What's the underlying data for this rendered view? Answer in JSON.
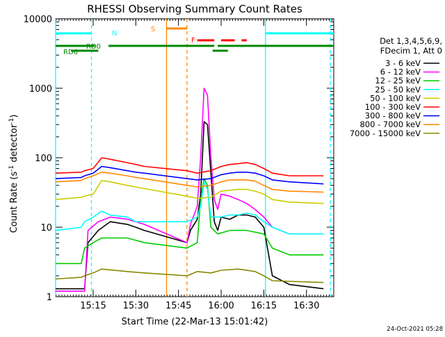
{
  "chart_data": {
    "type": "line",
    "title": "RHESSI Observing Summary Count Rates",
    "xlabel": "Start Time (22-Mar-13 15:01:42)",
    "ylabel_main": "Count Rate (s",
    "ylabel_sup1": "-1",
    "ylabel_mid": " detector",
    "ylabel_sup2": "-1",
    "ylabel_end": ")",
    "y_scale": "log",
    "ylim": [
      1,
      10000
    ],
    "xlim_minutes": [
      15.03,
      16.66
    ],
    "x_ticks": [
      {
        "label": "15:15",
        "x": 15.25
      },
      {
        "label": "15:30",
        "x": 15.5
      },
      {
        "label": "15:45",
        "x": 15.75
      },
      {
        "label": "16:00",
        "x": 16.0
      },
      {
        "label": "16:15",
        "x": 16.25
      },
      {
        "label": "16:30",
        "x": 16.5
      }
    ],
    "y_ticks": [
      {
        "label": "1",
        "v": 1
      },
      {
        "label": "10",
        "v": 10
      },
      {
        "label": "100",
        "v": 100
      },
      {
        "label": "1000",
        "v": 1000
      },
      {
        "label": "10000",
        "v": 10000
      }
    ],
    "legend_header": [
      "Det 1,3,4,5,6,9,",
      "FDecim 1, Att 0"
    ],
    "legend_position": "right",
    "series": [
      {
        "name": "3 - 6 keV",
        "color": "#000000",
        "points": [
          [
            15.03,
            1.3
          ],
          [
            15.2,
            1.3
          ],
          [
            15.22,
            6
          ],
          [
            15.28,
            9
          ],
          [
            15.35,
            12
          ],
          [
            15.45,
            11
          ],
          [
            15.5,
            10
          ],
          [
            15.55,
            9
          ],
          [
            15.8,
            6
          ],
          [
            15.82,
            9
          ],
          [
            15.86,
            13
          ],
          [
            15.88,
            30
          ],
          [
            15.9,
            330
          ],
          [
            15.92,
            300
          ],
          [
            15.94,
            60
          ],
          [
            15.96,
            12
          ],
          [
            15.98,
            9
          ],
          [
            16.0,
            14
          ],
          [
            16.05,
            13
          ],
          [
            16.1,
            15
          ],
          [
            16.15,
            15
          ],
          [
            16.2,
            14
          ],
          [
            16.25,
            10
          ],
          [
            16.3,
            2
          ],
          [
            16.4,
            1.5
          ],
          [
            16.6,
            1.3
          ]
        ]
      },
      {
        "name": "6 - 12 keV",
        "color": "#ff00ff",
        "points": [
          [
            15.03,
            1.2
          ],
          [
            15.2,
            1.2
          ],
          [
            15.22,
            9
          ],
          [
            15.28,
            12
          ],
          [
            15.35,
            14
          ],
          [
            15.45,
            13
          ],
          [
            15.5,
            12
          ],
          [
            15.55,
            11
          ],
          [
            15.8,
            6
          ],
          [
            15.82,
            11
          ],
          [
            15.86,
            20
          ],
          [
            15.88,
            100
          ],
          [
            15.9,
            1000
          ],
          [
            15.92,
            800
          ],
          [
            15.94,
            100
          ],
          [
            15.96,
            25
          ],
          [
            15.98,
            18
          ],
          [
            16.0,
            30
          ],
          [
            16.05,
            28
          ],
          [
            16.1,
            25
          ],
          [
            16.15,
            22
          ],
          [
            16.2,
            18
          ],
          [
            16.25,
            14
          ],
          [
            16.3,
            10
          ],
          [
            16.4,
            8
          ],
          [
            16.6,
            8
          ]
        ]
      },
      {
        "name": "12 - 25 keV",
        "color": "#00cc00",
        "points": [
          [
            15.03,
            3
          ],
          [
            15.18,
            3
          ],
          [
            15.2,
            5
          ],
          [
            15.25,
            6
          ],
          [
            15.3,
            7
          ],
          [
            15.45,
            7
          ],
          [
            15.55,
            6
          ],
          [
            15.8,
            5
          ],
          [
            15.86,
            6
          ],
          [
            15.88,
            25
          ],
          [
            15.9,
            50
          ],
          [
            15.92,
            40
          ],
          [
            15.94,
            10
          ],
          [
            15.98,
            8
          ],
          [
            16.05,
            9
          ],
          [
            16.15,
            9
          ],
          [
            16.25,
            8
          ],
          [
            16.3,
            5
          ],
          [
            16.4,
            4
          ],
          [
            16.6,
            4
          ]
        ]
      },
      {
        "name": "25 - 50 keV",
        "color": "#00ffff",
        "points": [
          [
            15.03,
            9
          ],
          [
            15.18,
            10
          ],
          [
            15.2,
            12
          ],
          [
            15.25,
            14
          ],
          [
            15.3,
            17
          ],
          [
            15.35,
            15
          ],
          [
            15.45,
            14
          ],
          [
            15.5,
            12
          ],
          [
            15.55,
            12
          ],
          [
            15.8,
            12
          ],
          [
            15.86,
            14
          ],
          [
            15.88,
            20
          ],
          [
            15.9,
            45
          ],
          [
            15.92,
            35
          ],
          [
            15.94,
            14
          ],
          [
            16.0,
            14
          ],
          [
            16.05,
            15
          ],
          [
            16.1,
            15
          ],
          [
            16.15,
            16
          ],
          [
            16.2,
            15
          ],
          [
            16.25,
            12
          ],
          [
            16.3,
            10
          ],
          [
            16.4,
            8
          ],
          [
            16.6,
            8
          ]
        ]
      },
      {
        "name": "50 - 100 keV",
        "color": "#cccc00",
        "points": [
          [
            15.03,
            25
          ],
          [
            15.18,
            27
          ],
          [
            15.2,
            28
          ],
          [
            15.25,
            30
          ],
          [
            15.3,
            47
          ],
          [
            15.35,
            45
          ],
          [
            15.45,
            40
          ],
          [
            15.5,
            38
          ],
          [
            15.55,
            36
          ],
          [
            15.8,
            28
          ],
          [
            15.86,
            26
          ],
          [
            15.94,
            27
          ],
          [
            16.0,
            33
          ],
          [
            16.05,
            34
          ],
          [
            16.1,
            35
          ],
          [
            16.15,
            35
          ],
          [
            16.2,
            33
          ],
          [
            16.25,
            30
          ],
          [
            16.3,
            25
          ],
          [
            16.4,
            23
          ],
          [
            16.6,
            22
          ]
        ]
      },
      {
        "name": "100 - 300 keV",
        "color": "#ff0000",
        "points": [
          [
            15.03,
            60
          ],
          [
            15.18,
            62
          ],
          [
            15.2,
            65
          ],
          [
            15.25,
            70
          ],
          [
            15.3,
            100
          ],
          [
            15.35,
            95
          ],
          [
            15.45,
            85
          ],
          [
            15.5,
            80
          ],
          [
            15.55,
            75
          ],
          [
            15.8,
            65
          ],
          [
            15.86,
            60
          ],
          [
            15.94,
            65
          ],
          [
            16.0,
            75
          ],
          [
            16.05,
            80
          ],
          [
            16.1,
            82
          ],
          [
            16.15,
            85
          ],
          [
            16.2,
            80
          ],
          [
            16.25,
            70
          ],
          [
            16.3,
            60
          ],
          [
            16.4,
            55
          ],
          [
            16.6,
            55
          ]
        ]
      },
      {
        "name": "300 - 800 keV",
        "color": "#0000ff",
        "points": [
          [
            15.03,
            50
          ],
          [
            15.18,
            52
          ],
          [
            15.2,
            55
          ],
          [
            15.25,
            60
          ],
          [
            15.3,
            75
          ],
          [
            15.35,
            72
          ],
          [
            15.45,
            65
          ],
          [
            15.5,
            62
          ],
          [
            15.55,
            60
          ],
          [
            15.8,
            50
          ],
          [
            15.86,
            48
          ],
          [
            15.94,
            50
          ],
          [
            16.0,
            57
          ],
          [
            16.05,
            60
          ],
          [
            16.1,
            62
          ],
          [
            16.15,
            62
          ],
          [
            16.2,
            60
          ],
          [
            16.25,
            55
          ],
          [
            16.3,
            48
          ],
          [
            16.4,
            45
          ],
          [
            16.6,
            42
          ]
        ]
      },
      {
        "name": "800 - 7000 keV",
        "color": "#ff8800",
        "points": [
          [
            15.03,
            45
          ],
          [
            15.18,
            47
          ],
          [
            15.2,
            50
          ],
          [
            15.25,
            55
          ],
          [
            15.3,
            62
          ],
          [
            15.35,
            60
          ],
          [
            15.45,
            55
          ],
          [
            15.5,
            52
          ],
          [
            15.55,
            50
          ],
          [
            15.8,
            40
          ],
          [
            15.86,
            38
          ],
          [
            15.94,
            40
          ],
          [
            16.0,
            45
          ],
          [
            16.05,
            48
          ],
          [
            16.1,
            48
          ],
          [
            16.15,
            48
          ],
          [
            16.2,
            46
          ],
          [
            16.25,
            40
          ],
          [
            16.3,
            35
          ],
          [
            16.4,
            33
          ],
          [
            16.6,
            32
          ]
        ]
      },
      {
        "name": "7000 - 15000 keV",
        "color": "#888800",
        "points": [
          [
            15.03,
            1.8
          ],
          [
            15.18,
            1.9
          ],
          [
            15.2,
            2
          ],
          [
            15.25,
            2.2
          ],
          [
            15.3,
            2.5
          ],
          [
            15.45,
            2.3
          ],
          [
            15.55,
            2.2
          ],
          [
            15.8,
            2
          ],
          [
            15.86,
            2.3
          ],
          [
            15.94,
            2.2
          ],
          [
            16.0,
            2.4
          ],
          [
            16.1,
            2.5
          ],
          [
            16.2,
            2.3
          ],
          [
            16.25,
            2
          ],
          [
            16.3,
            1.7
          ],
          [
            16.6,
            1.6
          ]
        ]
      }
    ],
    "state_labels": [
      {
        "label": "N",
        "color": "#00ffff"
      },
      {
        "label": "S",
        "color": "#ff8800"
      },
      {
        "label": "F",
        "color": "#ff0000"
      },
      {
        "label": "RD0",
        "color": "#008800"
      },
      {
        "label": "RD6",
        "color": "#008800"
      }
    ],
    "state_bars": [
      {
        "state": "N",
        "color": "#00ffff",
        "from": 15.03,
        "to": 15.24
      },
      {
        "state": "N",
        "color": "#00ffff",
        "from": 16.26,
        "to": 16.66
      },
      {
        "state": "S",
        "color": "#ff8800",
        "from": 15.68,
        "to": 15.8
      },
      {
        "state": "F",
        "color": "#ff0000",
        "from": 15.86,
        "to": 15.96
      },
      {
        "state": "F",
        "color": "#ff0000",
        "from": 16.0,
        "to": 16.08
      },
      {
        "state": "F",
        "color": "#ff0000",
        "from": 16.12,
        "to": 16.15
      },
      {
        "state": "RD0",
        "color": "#008800",
        "from": 15.03,
        "to": 15.26
      },
      {
        "state": "RD0",
        "color": "#008800",
        "from": 15.34,
        "to": 15.96
      },
      {
        "state": "RD0",
        "color": "#008800",
        "from": 15.98,
        "to": 16.66
      },
      {
        "state": "RD6",
        "color": "#008800",
        "from": 15.12,
        "to": 15.28
      },
      {
        "state": "RD6",
        "color": "#008800",
        "from": 15.95,
        "to": 16.04
      }
    ],
    "vertical_markers": [
      {
        "x": 15.03,
        "color": "#00ffff",
        "style": "solid"
      },
      {
        "x": 15.24,
        "color": "#00ffff",
        "style": "dashed"
      },
      {
        "x": 15.68,
        "color": "#ff8800",
        "style": "solid"
      },
      {
        "x": 15.8,
        "color": "#ff8800",
        "style": "dashed"
      },
      {
        "x": 16.26,
        "color": "#00ffff",
        "style": "solid"
      },
      {
        "x": 16.64,
        "color": "#00ffff",
        "style": "dashed"
      }
    ],
    "timestamp": "24-Oct-2021 05:28"
  }
}
